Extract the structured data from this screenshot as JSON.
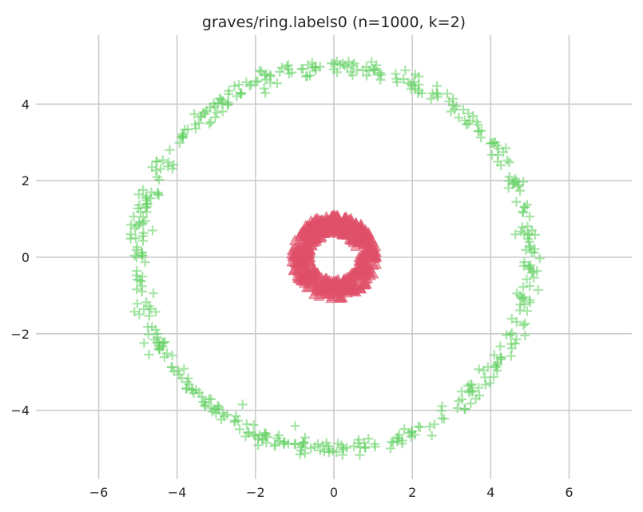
{
  "chart_data": {
    "type": "scatter",
    "title": "graves/ring.labels0 (n=1000, k=2)",
    "xlabel": "",
    "ylabel": "",
    "xlim": [
      -7.6,
      7.6
    ],
    "ylim": [
      -5.8,
      5.8
    ],
    "xticks": [
      -6,
      -4,
      -2,
      0,
      2,
      4,
      6
    ],
    "xtick_labels": [
      "−6",
      "−4",
      "−2",
      "0",
      "2",
      "4",
      "6"
    ],
    "yticks": [
      -4,
      -2,
      0,
      2,
      4
    ],
    "ytick_labels": [
      "−4",
      "−2",
      "0",
      "2",
      "4"
    ],
    "grid": true,
    "legend": "none",
    "series": [
      {
        "marker": "plus",
        "color": "#5fd05f",
        "count": 500,
        "radius_mean": 5.0,
        "radius_spread": 0.12
      },
      {
        "marker": "triangle",
        "color": "#e0506a",
        "count": 500,
        "radius_mean": 0.85,
        "radius_spread": 0.25
      }
    ]
  },
  "colors": {
    "grid": "#cccccc",
    "background": "#ffffff",
    "text": "#262626"
  }
}
